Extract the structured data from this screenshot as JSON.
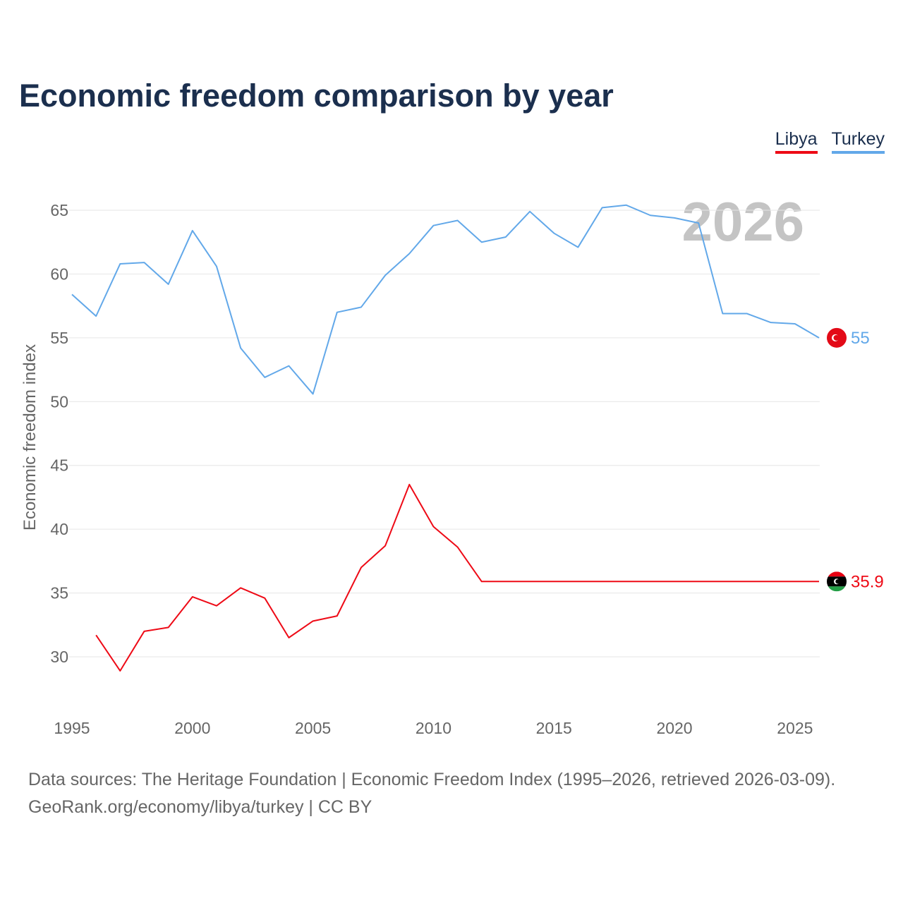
{
  "title": "Economic freedom comparison by year",
  "year_watermark": "2026",
  "legend": [
    {
      "label": "Libya",
      "color": "#ee0a16"
    },
    {
      "label": "Turkey",
      "color": "#62a8e9"
    }
  ],
  "footer": {
    "line1": "Data sources: The Heritage Foundation | Economic Freedom Index (1995–2026, retrieved 2026-03-09).",
    "line2": "GeoRank.org/economy/libya/turkey | CC BY"
  },
  "chart_data": {
    "type": "line",
    "title": "Economic freedom comparison by year",
    "xlabel": "",
    "ylabel": "Economic freedom index",
    "xlim": [
      1995,
      2026
    ],
    "ylim": [
      26,
      66
    ],
    "x_ticks": [
      1995,
      2000,
      2005,
      2010,
      2015,
      2020,
      2025
    ],
    "y_ticks": [
      30,
      35,
      40,
      45,
      50,
      55,
      60,
      65
    ],
    "grid": true,
    "legend_position": "top-right",
    "series": [
      {
        "name": "Turkey",
        "color": "#62a8e9",
        "end_label": "55",
        "x": [
          1995,
          1996,
          1997,
          1998,
          1999,
          2000,
          2001,
          2002,
          2003,
          2004,
          2005,
          2006,
          2007,
          2008,
          2009,
          2010,
          2011,
          2012,
          2013,
          2014,
          2015,
          2016,
          2017,
          2018,
          2019,
          2020,
          2021,
          2022,
          2023,
          2024,
          2025,
          2026
        ],
        "values": [
          58.4,
          56.7,
          60.8,
          60.9,
          59.2,
          63.4,
          60.6,
          54.2,
          51.9,
          52.8,
          50.6,
          57.0,
          57.4,
          59.9,
          61.6,
          63.8,
          64.2,
          62.5,
          62.9,
          64.9,
          63.2,
          62.1,
          65.2,
          65.4,
          64.6,
          64.4,
          64.0,
          56.9,
          56.9,
          56.2,
          56.1,
          55.0
        ]
      },
      {
        "name": "Libya",
        "color": "#ee0a16",
        "end_label": "35.9",
        "x": [
          1996,
          1997,
          1998,
          1999,
          2000,
          2001,
          2002,
          2003,
          2004,
          2005,
          2006,
          2007,
          2008,
          2009,
          2010,
          2011,
          2012,
          2013,
          2014,
          2015,
          2016,
          2017,
          2018,
          2019,
          2020,
          2021,
          2022,
          2023,
          2024,
          2025,
          2026
        ],
        "values": [
          31.7,
          28.9,
          32.0,
          32.3,
          34.7,
          34.0,
          35.4,
          34.6,
          31.5,
          32.8,
          33.2,
          37.0,
          38.7,
          43.5,
          40.2,
          38.6,
          35.9,
          35.9,
          35.9,
          35.9,
          35.9,
          35.9,
          35.9,
          35.9,
          35.9,
          35.9,
          35.9,
          35.9,
          35.9,
          35.9,
          35.9
        ]
      }
    ]
  }
}
